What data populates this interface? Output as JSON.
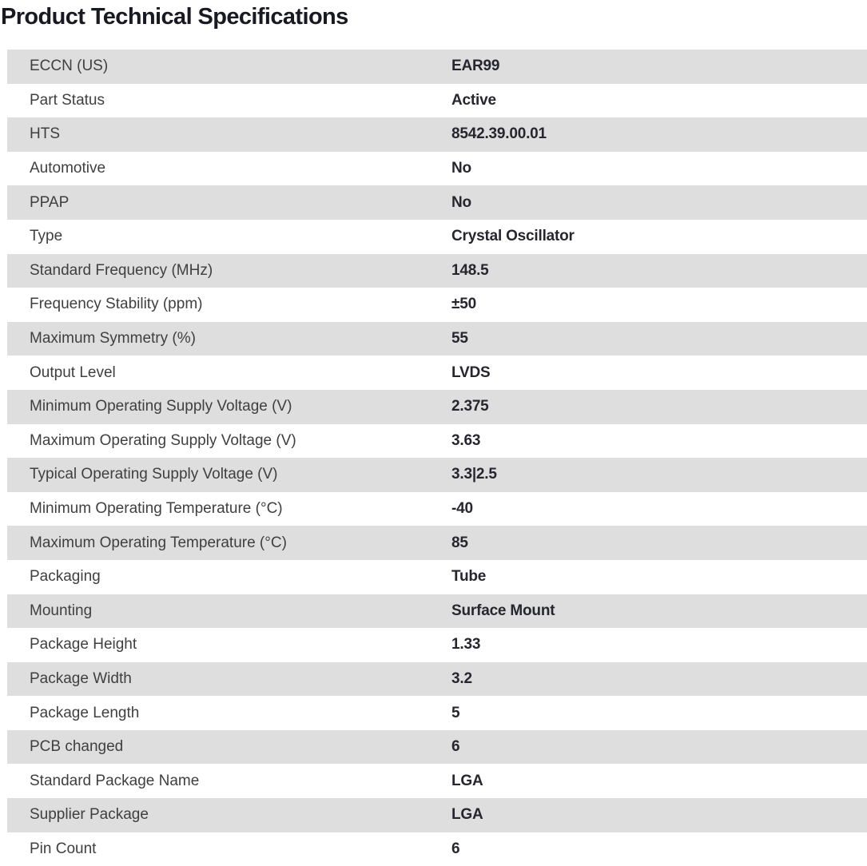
{
  "page": {
    "title": "Product Technical Specifications"
  },
  "colors": {
    "stripe": "#dedede",
    "row_plain": "#ffffff",
    "title_color": "#191924",
    "label_color": "#3f3f3f",
    "value_color": "#26262e"
  },
  "table": {
    "rows": [
      {
        "label": "ECCN (US)",
        "value": "EAR99"
      },
      {
        "label": "Part Status",
        "value": "Active"
      },
      {
        "label": "HTS",
        "value": "8542.39.00.01"
      },
      {
        "label": "Automotive",
        "value": "No"
      },
      {
        "label": "PPAP",
        "value": "No"
      },
      {
        "label": "Type",
        "value": "Crystal Oscillator"
      },
      {
        "label": "Standard Frequency (MHz)",
        "value": "148.5"
      },
      {
        "label": "Frequency Stability (ppm)",
        "value": "±50"
      },
      {
        "label": "Maximum Symmetry (%)",
        "value": "55"
      },
      {
        "label": "Output Level",
        "value": "LVDS"
      },
      {
        "label": "Minimum Operating Supply Voltage (V)",
        "value": "2.375"
      },
      {
        "label": "Maximum Operating Supply Voltage (V)",
        "value": "3.63"
      },
      {
        "label": "Typical Operating Supply Voltage (V)",
        "value": "3.3|2.5"
      },
      {
        "label": "Minimum Operating Temperature (°C)",
        "value": "-40"
      },
      {
        "label": "Maximum Operating Temperature (°C)",
        "value": "85"
      },
      {
        "label": "Packaging",
        "value": "Tube"
      },
      {
        "label": "Mounting",
        "value": "Surface Mount"
      },
      {
        "label": "Package Height",
        "value": "1.33"
      },
      {
        "label": "Package Width",
        "value": "3.2"
      },
      {
        "label": "Package Length",
        "value": "5"
      },
      {
        "label": "PCB changed",
        "value": "6"
      },
      {
        "label": "Standard Package Name",
        "value": "LGA"
      },
      {
        "label": "Supplier Package",
        "value": "LGA"
      },
      {
        "label": "Pin Count",
        "value": "6"
      }
    ]
  }
}
